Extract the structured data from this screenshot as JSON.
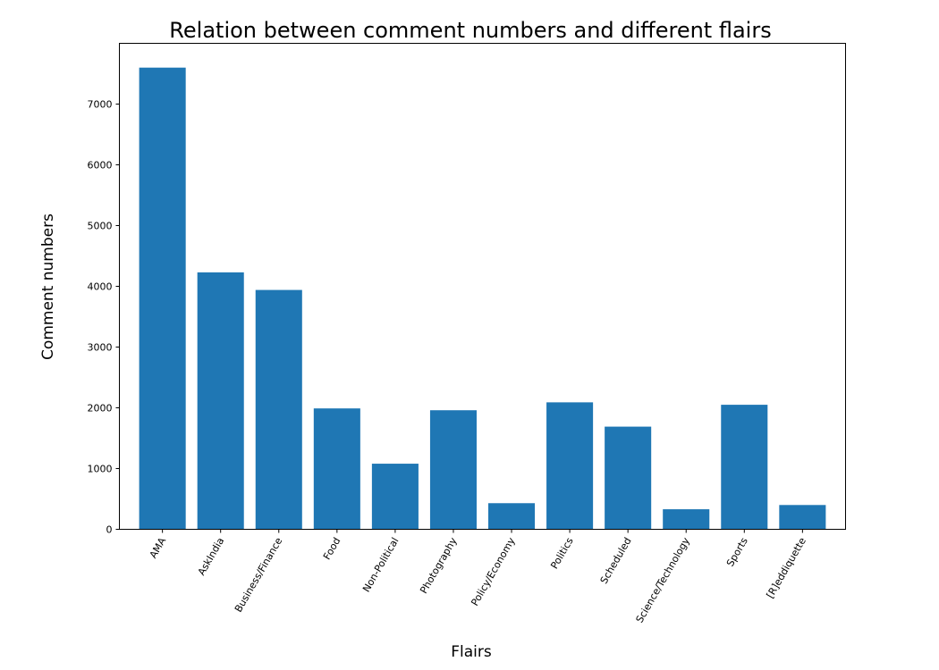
{
  "chart_data": {
    "type": "bar",
    "title": "Relation between comment numbers and different flairs",
    "xlabel": "Flairs",
    "ylabel": "Comment numbers",
    "categories": [
      "AMA",
      "AskIndia",
      "Business/Finance",
      "Food",
      "Non-Political",
      "Photography",
      "Policy/Economy",
      "Politics",
      "Scheduled",
      "Science/Technology",
      "Sports",
      "[R]eddiquette"
    ],
    "values": [
      7600,
      4230,
      3940,
      1990,
      1080,
      1960,
      430,
      2090,
      1690,
      330,
      2050,
      400
    ],
    "ylim": [
      0,
      8000
    ],
    "yticks": [
      0,
      1000,
      2000,
      3000,
      4000,
      5000,
      6000,
      7000
    ],
    "grid": false,
    "bar_color": "#1f77b4"
  }
}
